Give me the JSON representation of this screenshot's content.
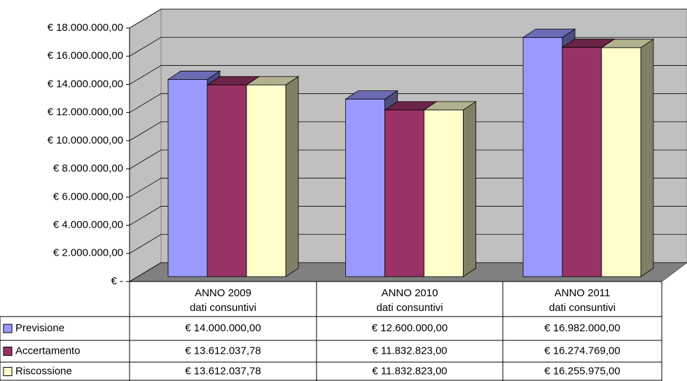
{
  "chart_data": {
    "type": "bar",
    "categories": [
      "ANNO 2009",
      "ANNO 2010",
      "ANNO 2011"
    ],
    "category_sublabels": [
      "dati consuntivi",
      "dati consuntivi",
      "dati consuntivi"
    ],
    "series": [
      {
        "name": "Previsione",
        "color": "#9999ff",
        "values": [
          14000000,
          12600000,
          16982000
        ],
        "value_labels": [
          "€ 14.000.000,00",
          "€ 12.600.000,00",
          "€ 16.982.000,00"
        ]
      },
      {
        "name": "Accertamento",
        "color": "#993366",
        "values": [
          13612037.78,
          11832823,
          16274769
        ],
        "value_labels": [
          "€ 13.612.037,78",
          "€ 11.832.823,00",
          "€ 16.274.769,00"
        ]
      },
      {
        "name": "Riscossione",
        "color": "#ffffcc",
        "values": [
          13612037.78,
          11832823,
          16255975
        ],
        "value_labels": [
          "€ 13.612.037,78",
          "€ 11.832.823,00",
          "€ 16.255.975,00"
        ]
      }
    ],
    "ylim": [
      0,
      18000000
    ],
    "yticks": [
      {
        "value": 0,
        "label": "€ -"
      },
      {
        "value": 2000000,
        "label": "€ 2.000.000,00"
      },
      {
        "value": 4000000,
        "label": "€ 4.000.000,00"
      },
      {
        "value": 6000000,
        "label": "€ 6.000.000,00"
      },
      {
        "value": 8000000,
        "label": "€ 8.000.000,00"
      },
      {
        "value": 10000000,
        "label": "€ 10.000.000,00"
      },
      {
        "value": 12000000,
        "label": "€ 12.000.000,00"
      },
      {
        "value": 14000000,
        "label": "€ 14.000.000,00"
      },
      {
        "value": 16000000,
        "label": "€ 16.000.000,00"
      },
      {
        "value": 18000000,
        "label": "€ 18.000.000,00"
      }
    ],
    "grid": true
  }
}
